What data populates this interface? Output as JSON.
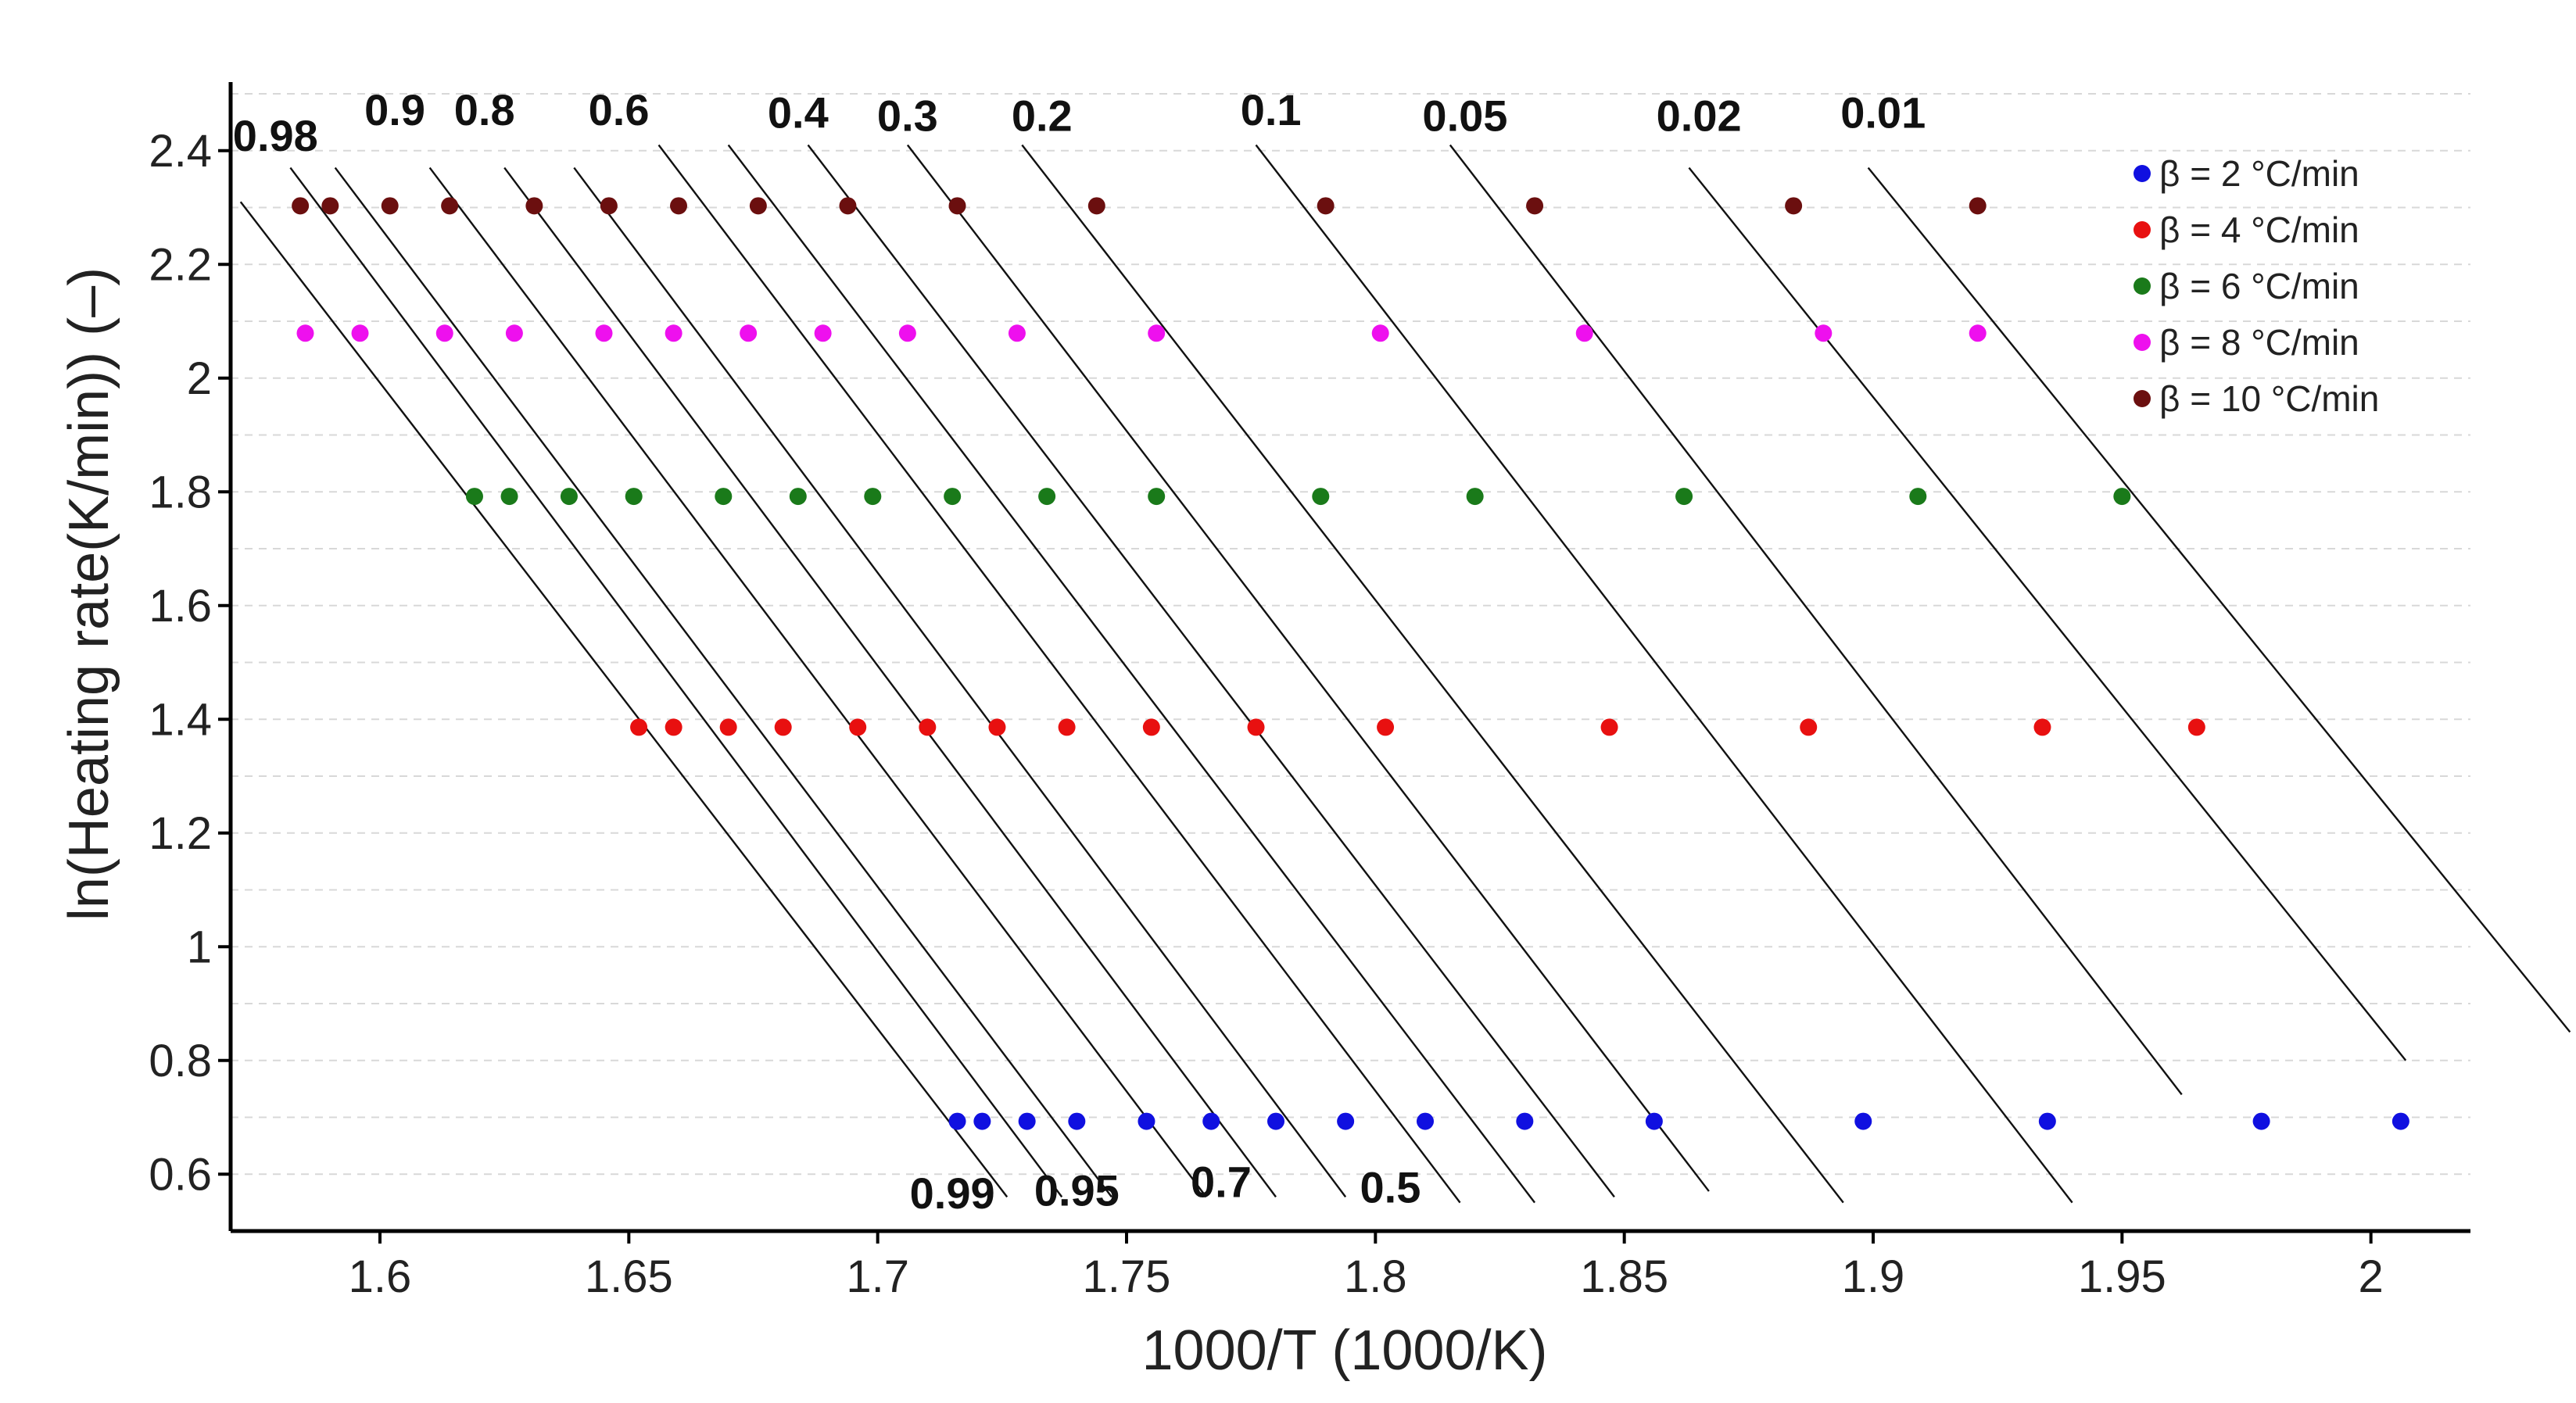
{
  "chart_data": {
    "type": "scatter",
    "xlabel": "1000/T (1000/K)",
    "ylabel": "ln(Heating rate(K/min)) (–)",
    "xlim": [
      1.57,
      2.02
    ],
    "ylim": [
      0.5,
      2.5
    ],
    "xticks": [
      1.6,
      1.65,
      1.7,
      1.75,
      1.8,
      1.85,
      1.9,
      1.95,
      2.0
    ],
    "xtick_labels": [
      "1.6",
      "1.65",
      "1.7",
      "1.75",
      "1.8",
      "1.85",
      "1.9",
      "1.95",
      "2"
    ],
    "yticks": [
      0.6,
      0.8,
      1.0,
      1.2,
      1.4,
      1.6,
      1.8,
      2.0,
      2.2,
      2.4
    ],
    "ytick_labels": [
      "0.6",
      "0.8",
      "1",
      "1.2",
      "1.4",
      "1.6",
      "1.8",
      "2",
      "2.2",
      "2.4"
    ],
    "grid": "horizontal dashed",
    "legend_position": "top-right",
    "series": [
      {
        "name": "β = 2 °C/min",
        "color": "#1010e0",
        "y": 0.693,
        "x": [
          1.716,
          1.721,
          1.73,
          1.74,
          1.754,
          1.767,
          1.78,
          1.794,
          1.81,
          1.83,
          1.856,
          1.898,
          1.935,
          1.978,
          2.006
        ]
      },
      {
        "name": "β = 4 °C/min",
        "color": "#e81010",
        "y": 1.386,
        "x": [
          1.652,
          1.659,
          1.67,
          1.681,
          1.696,
          1.71,
          1.724,
          1.738,
          1.755,
          1.776,
          1.802,
          1.847,
          1.887,
          1.934,
          1.965
        ]
      },
      {
        "name": "β = 6 °C/min",
        "color": "#1a7a1a",
        "y": 1.792,
        "x": [
          1.619,
          1.626,
          1.638,
          1.651,
          1.669,
          1.684,
          1.699,
          1.715,
          1.734,
          1.756,
          1.789,
          1.82,
          1.862,
          1.909,
          1.95
        ]
      },
      {
        "name": "β = 8 °C/min",
        "color": "#ee10ee",
        "y": 2.079,
        "x": [
          1.585,
          1.596,
          1.613,
          1.627,
          1.645,
          1.659,
          1.674,
          1.689,
          1.706,
          1.728,
          1.756,
          1.801,
          1.842,
          1.89,
          1.921
        ]
      },
      {
        "name": "β = 10 °C/min",
        "color": "#6b0f0f",
        "y": 2.303,
        "x": [
          1.584,
          1.59,
          1.602,
          1.614,
          1.631,
          1.646,
          1.66,
          1.676,
          1.694,
          1.716,
          1.744,
          1.79,
          1.832,
          1.884,
          1.921
        ]
      }
    ],
    "fit_lines": [
      {
        "label": "0.99",
        "x_start": 1.572,
        "y_start": 2.31,
        "x_end": 1.726,
        "y_end": 0.56
      },
      {
        "label": "0.98",
        "x_start": 1.582,
        "y_start": 2.37,
        "x_end": 1.737,
        "y_end": 0.56
      },
      {
        "label": "0.95",
        "x_start": 1.591,
        "y_start": 2.37,
        "x_end": 1.747,
        "y_end": 0.56
      },
      {
        "label": "0.9",
        "x_start": 1.61,
        "y_start": 2.37,
        "x_end": 1.766,
        "y_end": 0.56
      },
      {
        "label": "0.8",
        "x_start": 1.625,
        "y_start": 2.37,
        "x_end": 1.78,
        "y_end": 0.56
      },
      {
        "label": "0.7",
        "x_start": 1.639,
        "y_start": 2.37,
        "x_end": 1.794,
        "y_end": 0.56
      },
      {
        "label": "0.6",
        "x_start": 1.656,
        "y_start": 2.41,
        "x_end": 1.817,
        "y_end": 0.55
      },
      {
        "label": "0.5",
        "x_start": 1.67,
        "y_start": 2.41,
        "x_end": 1.832,
        "y_end": 0.55
      },
      {
        "label": "0.4",
        "x_start": 1.686,
        "y_start": 2.41,
        "x_end": 1.848,
        "y_end": 0.56
      },
      {
        "label": "0.3",
        "x_start": 1.706,
        "y_start": 2.41,
        "x_end": 1.867,
        "y_end": 0.57
      },
      {
        "label": "0.2",
        "x_start": 1.729,
        "y_start": 2.41,
        "x_end": 1.894,
        "y_end": 0.55
      },
      {
        "label": "0.1",
        "x_start": 1.776,
        "y_start": 2.41,
        "x_end": 1.94,
        "y_end": 0.55
      },
      {
        "label": "0.05",
        "x_start": 1.815,
        "y_start": 2.41,
        "x_end": 1.962,
        "y_end": 0.74
      },
      {
        "label": "0.02",
        "x_start": 1.863,
        "y_start": 2.37,
        "x_end": 2.007,
        "y_end": 0.8
      },
      {
        "label": "0.01",
        "x_start": 1.899,
        "y_start": 2.37,
        "x_end": 2.04,
        "y_end": 0.85
      }
    ],
    "annotations": [
      {
        "text": "0.98",
        "x": 1.579,
        "y": 2.4
      },
      {
        "text": "0.9",
        "x": 1.603,
        "y": 2.445
      },
      {
        "text": "0.8",
        "x": 1.621,
        "y": 2.445
      },
      {
        "text": "0.6",
        "x": 1.648,
        "y": 2.445
      },
      {
        "text": "0.4",
        "x": 1.684,
        "y": 2.44
      },
      {
        "text": "0.3",
        "x": 1.706,
        "y": 2.435
      },
      {
        "text": "0.2",
        "x": 1.733,
        "y": 2.435
      },
      {
        "text": "0.1",
        "x": 1.779,
        "y": 2.445
      },
      {
        "text": "0.05",
        "x": 1.818,
        "y": 2.435
      },
      {
        "text": "0.02",
        "x": 1.865,
        "y": 2.435
      },
      {
        "text": "0.01",
        "x": 1.902,
        "y": 2.44
      },
      {
        "text": "0.99",
        "x": 1.715,
        "y": 0.54
      },
      {
        "text": "0.95",
        "x": 1.74,
        "y": 0.545
      },
      {
        "text": "0.7",
        "x": 1.769,
        "y": 0.56
      },
      {
        "text": "0.5",
        "x": 1.803,
        "y": 0.55
      }
    ]
  }
}
